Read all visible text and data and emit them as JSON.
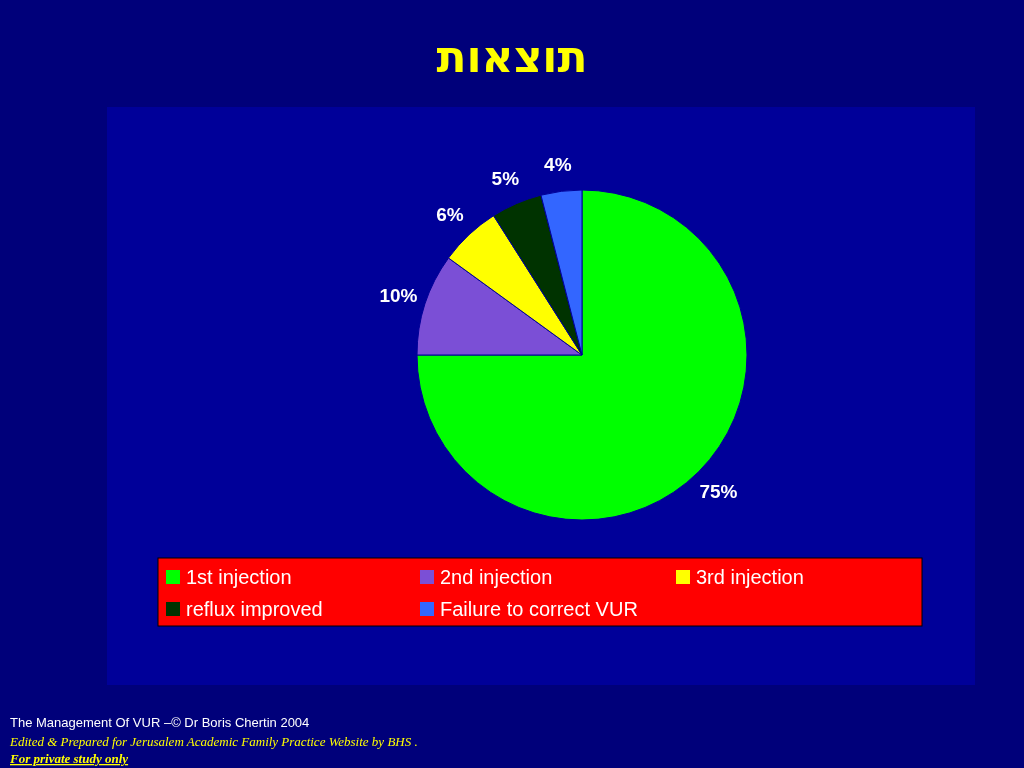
{
  "chart_data": {
    "type": "pie",
    "title": "תוצאות",
    "categories": [
      "1st injection",
      "2nd injection",
      "3rd injection",
      "reflux improved",
      "Failure to correct VUR"
    ],
    "values": [
      75,
      10,
      6,
      5,
      4
    ],
    "value_labels": [
      "75%",
      "10%",
      "6%",
      "5%",
      "4%"
    ],
    "colors": [
      "#00ff00",
      "#7b4fd6",
      "#ffff00",
      "#003300",
      "#3366ff"
    ],
    "legend": "bottom",
    "annotations": [
      "The Management Of VUR –© Dr Boris Chertin 2004",
      "Edited & Prepared for Jerusalem Academic Family Practice Website by BHS .",
      "For private study only"
    ]
  }
}
